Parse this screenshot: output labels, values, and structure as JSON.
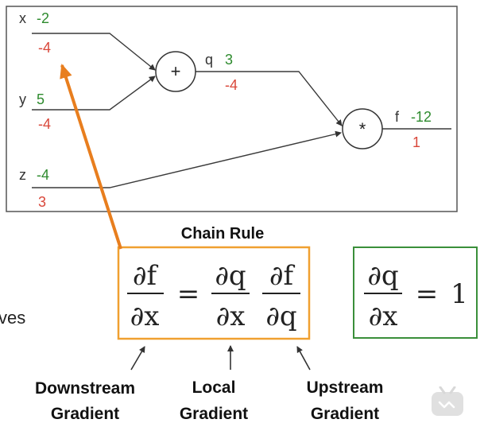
{
  "graph": {
    "inputs": [
      {
        "name": "x",
        "value": "-2",
        "gradient": "-4"
      },
      {
        "name": "y",
        "value": "5",
        "gradient": "-4"
      },
      {
        "name": "z",
        "value": "-4",
        "gradient": "3"
      }
    ],
    "add_node": {
      "symbol": "+",
      "output_name": "q",
      "value": "3",
      "gradient": "-4"
    },
    "mul_node": {
      "symbol": "*",
      "output_name": "f",
      "value": "-12",
      "gradient": "1"
    }
  },
  "chain_rule": {
    "title": "Chain Rule",
    "equation": {
      "lhs": {
        "num": "∂f",
        "den": "∂x"
      },
      "equals": "=",
      "local": {
        "num": "∂q",
        "den": "∂x"
      },
      "upstream": {
        "num": "∂f",
        "den": "∂q"
      }
    },
    "local_value": {
      "num": "∂q",
      "den": "∂x",
      "equals": "=",
      "value": "1"
    }
  },
  "labels": {
    "downstream": [
      "Downstream",
      "Gradient"
    ],
    "local": [
      "Local",
      "Gradient"
    ],
    "upstream": [
      "Upstream",
      "Gradient"
    ]
  },
  "cropped_text": "ves",
  "colors": {
    "value": "#2e8b2e",
    "gradient": "#d9473a",
    "orange_box": "#f0a030",
    "orange_arrow": "#e87e1e",
    "green_box": "#3a8f3a",
    "line": "#3a3a3a"
  }
}
